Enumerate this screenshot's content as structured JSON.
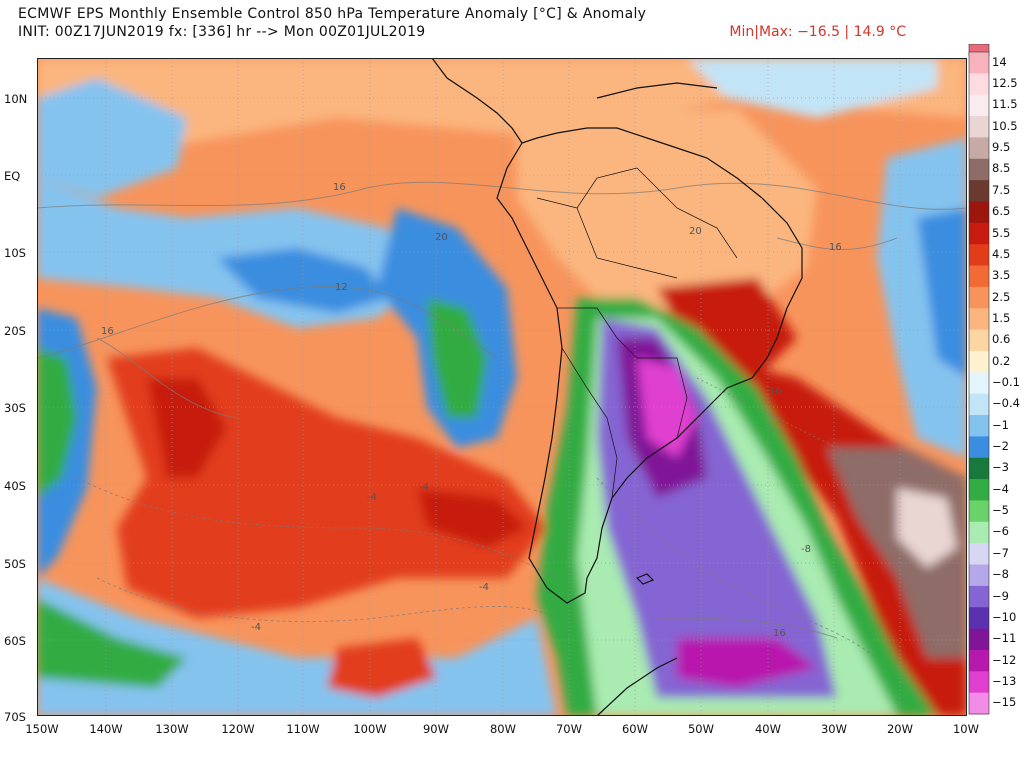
{
  "header": {
    "title": "ECMWF EPS Monthly Ensemble Control 850 hPa Temperature Anomaly [°C] & Anomaly",
    "subtitle": "INIT: 00Z17JUN2019 fx: [336] hr --> Mon 00Z01JUL2019",
    "minmax": "Min|Max: −16.5 | 14.9 °C"
  },
  "axes": {
    "lat_labels": [
      "10N",
      "EQ",
      "10S",
      "20S",
      "30S",
      "40S",
      "50S",
      "60S",
      "70S"
    ],
    "lon_labels": [
      "150W",
      "140W",
      "130W",
      "120W",
      "110W",
      "100W",
      "90W",
      "80W",
      "70W",
      "60W",
      "50W",
      "40W",
      "30W",
      "20W",
      "10W"
    ]
  },
  "colorbar": {
    "labels": [
      "14",
      "12.5",
      "11.5",
      "10.5",
      "9.5",
      "8.5",
      "7.5",
      "6.5",
      "5.5",
      "4.5",
      "3.5",
      "2.5",
      "1.5",
      "0.6",
      "0.2",
      "−0.1",
      "−0.4",
      "−1",
      "−2",
      "−3",
      "−4",
      "−5",
      "−6",
      "−7",
      "−8",
      "−9",
      "−10",
      "−11",
      "−12",
      "−13",
      "−15"
    ],
    "colors": [
      "#f7b2bc",
      "#fcdce1",
      "#f8ecee",
      "#e9d5d2",
      "#c7aaa5",
      "#8e6c67",
      "#6a3a30",
      "#9c160e",
      "#c71c0f",
      "#e23d1a",
      "#f26a36",
      "#f7945c",
      "#fbb57e",
      "#fdd5a2",
      "#fff1cf",
      "#e4f4fb",
      "#c2e4f7",
      "#85c3ef",
      "#3b8de0",
      "#177a3c",
      "#33ac43",
      "#69d36a",
      "#a9ebb0",
      "#d7d7f4",
      "#b5a8e8",
      "#8565d3",
      "#5a32b0",
      "#801597",
      "#b819ad",
      "#e03fd0",
      "#f38ce6"
    ]
  },
  "contours": {
    "labels": [
      "16",
      "20",
      "12",
      "16",
      "20",
      "16",
      "16",
      "-4",
      "-4",
      "-4",
      "-4",
      "-8",
      "16"
    ]
  }
}
